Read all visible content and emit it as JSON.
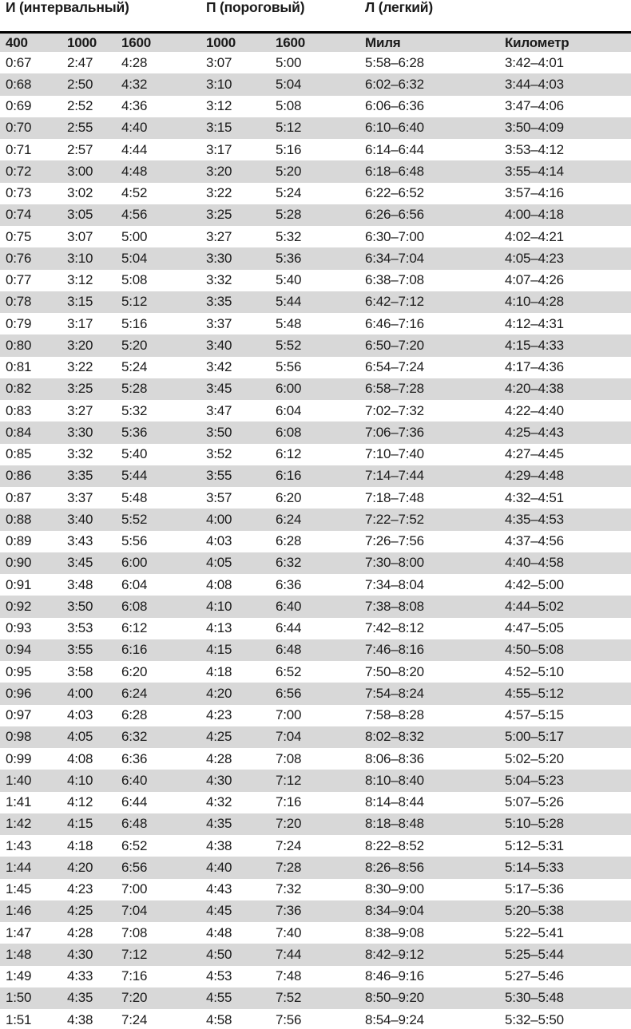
{
  "table": {
    "group_headers": [
      {
        "label": "И (интервальный)",
        "span": 3
      },
      {
        "label": "П (пороговый)",
        "span": 2
      },
      {
        "label": "Л (легкий)",
        "span": 2
      }
    ],
    "columns": [
      "400",
      "1000",
      "1600",
      "1000",
      "1600",
      "Миля",
      "Километр"
    ],
    "rows": [
      [
        "0:67",
        "2:47",
        "4:28",
        "3:07",
        "5:00",
        "5:58–6:28",
        "3:42–4:01"
      ],
      [
        "0:68",
        "2:50",
        "4:32",
        "3:10",
        "5:04",
        "6:02–6:32",
        "3:44–4:03"
      ],
      [
        "0:69",
        "2:52",
        "4:36",
        "3:12",
        "5:08",
        "6:06–6:36",
        "3:47–4:06"
      ],
      [
        "0:70",
        "2:55",
        "4:40",
        "3:15",
        "5:12",
        "6:10–6:40",
        "3:50–4:09"
      ],
      [
        "0:71",
        "2:57",
        "4:44",
        "3:17",
        "5:16",
        "6:14–6:44",
        "3:53–4:12"
      ],
      [
        "0:72",
        "3:00",
        "4:48",
        "3:20",
        "5:20",
        "6:18–6:48",
        "3:55–4:14"
      ],
      [
        "0:73",
        "3:02",
        "4:52",
        "3:22",
        "5:24",
        "6:22–6:52",
        "3:57–4:16"
      ],
      [
        "0:74",
        "3:05",
        "4:56",
        "3:25",
        "5:28",
        "6:26–6:56",
        "4:00–4:18"
      ],
      [
        "0:75",
        "3:07",
        "5:00",
        "3:27",
        "5:32",
        "6:30–7:00",
        "4:02–4:21"
      ],
      [
        "0:76",
        "3:10",
        "5:04",
        "3:30",
        "5:36",
        "6:34–7:04",
        "4:05–4:23"
      ],
      [
        "0:77",
        "3:12",
        "5:08",
        "3:32",
        "5:40",
        "6:38–7:08",
        "4:07–4:26"
      ],
      [
        "0:78",
        "3:15",
        "5:12",
        "3:35",
        "5:44",
        "6:42–7:12",
        "4:10–4:28"
      ],
      [
        "0:79",
        "3:17",
        "5:16",
        "3:37",
        "5:48",
        "6:46–7:16",
        "4:12–4:31"
      ],
      [
        "0:80",
        "3:20",
        "5:20",
        "3:40",
        "5:52",
        "6:50–7:20",
        "4:15–4:33"
      ],
      [
        "0:81",
        "3:22",
        "5:24",
        "3:42",
        "5:56",
        "6:54–7:24",
        "4:17–4:36"
      ],
      [
        "0:82",
        "3:25",
        "5:28",
        "3:45",
        "6:00",
        "6:58–7:28",
        "4:20–4:38"
      ],
      [
        "0:83",
        "3:27",
        "5:32",
        "3:47",
        "6:04",
        "7:02–7:32",
        "4:22–4:40"
      ],
      [
        "0:84",
        "3:30",
        "5:36",
        "3:50",
        "6:08",
        "7:06–7:36",
        "4:25–4:43"
      ],
      [
        "0:85",
        "3:32",
        "5:40",
        "3:52",
        "6:12",
        "7:10–7:40",
        "4:27–4:45"
      ],
      [
        "0:86",
        "3:35",
        "5:44",
        "3:55",
        "6:16",
        "7:14–7:44",
        "4:29–4:48"
      ],
      [
        "0:87",
        "3:37",
        "5:48",
        "3:57",
        "6:20",
        "7:18–7:48",
        "4:32–4:51"
      ],
      [
        "0:88",
        "3:40",
        "5:52",
        "4:00",
        "6:24",
        "7:22–7:52",
        "4:35–4:53"
      ],
      [
        "0:89",
        "3:43",
        "5:56",
        "4:03",
        "6:28",
        "7:26–7:56",
        "4:37–4:56"
      ],
      [
        "0:90",
        "3:45",
        "6:00",
        "4:05",
        "6:32",
        "7:30–8:00",
        "4:40–4:58"
      ],
      [
        "0:91",
        "3:48",
        "6:04",
        "4:08",
        "6:36",
        "7:34–8:04",
        "4:42–5:00"
      ],
      [
        "0:92",
        "3:50",
        "6:08",
        "4:10",
        "6:40",
        "7:38–8:08",
        "4:44–5:02"
      ],
      [
        "0:93",
        "3:53",
        "6:12",
        "4:13",
        "6:44",
        "7:42–8:12",
        "4:47–5:05"
      ],
      [
        "0:94",
        "3:55",
        "6:16",
        "4:15",
        "6:48",
        "7:46–8:16",
        "4:50–5:08"
      ],
      [
        "0:95",
        "3:58",
        "6:20",
        "4:18",
        "6:52",
        "7:50–8:20",
        "4:52–5:10"
      ],
      [
        "0:96",
        "4:00",
        "6:24",
        "4:20",
        "6:56",
        "7:54–8:24",
        "4:55–5:12"
      ],
      [
        "0:97",
        "4:03",
        "6:28",
        "4:23",
        "7:00",
        "7:58–8:28",
        "4:57–5:15"
      ],
      [
        "0:98",
        "4:05",
        "6:32",
        "4:25",
        "7:04",
        "8:02–8:32",
        "5:00–5:17"
      ],
      [
        "0:99",
        "4:08",
        "6:36",
        "4:28",
        "7:08",
        "8:06–8:36",
        "5:02–5:20"
      ],
      [
        "1:40",
        "4:10",
        "6:40",
        "4:30",
        "7:12",
        "8:10–8:40",
        "5:04–5:23"
      ],
      [
        "1:41",
        "4:12",
        "6:44",
        "4:32",
        "7:16",
        "8:14–8:44",
        "5:07–5:26"
      ],
      [
        "1:42",
        "4:15",
        "6:48",
        "4:35",
        "7:20",
        "8:18–8:48",
        "5:10–5:28"
      ],
      [
        "1:43",
        "4:18",
        "6:52",
        "4:38",
        "7:24",
        "8:22–8:52",
        "5:12–5:31"
      ],
      [
        "1:44",
        "4:20",
        "6:56",
        "4:40",
        "7:28",
        "8:26–8:56",
        "5:14–5:33"
      ],
      [
        "1:45",
        "4:23",
        "7:00",
        "4:43",
        "7:32",
        "8:30–9:00",
        "5:17–5:36"
      ],
      [
        "1:46",
        "4:25",
        "7:04",
        "4:45",
        "7:36",
        "8:34–9:04",
        "5:20–5:38"
      ],
      [
        "1:47",
        "4:28",
        "7:08",
        "4:48",
        "7:40",
        "8:38–9:08",
        "5:22–5:41"
      ],
      [
        "1:48",
        "4:30",
        "7:12",
        "4:50",
        "7:44",
        "8:42–9:12",
        "5:25–5:44"
      ],
      [
        "1:49",
        "4:33",
        "7:16",
        "4:53",
        "7:48",
        "8:46–9:16",
        "5:27–5:46"
      ],
      [
        "1:50",
        "4:35",
        "7:20",
        "4:55",
        "7:52",
        "8:50–9:20",
        "5:30–5:48"
      ],
      [
        "1:51",
        "4:38",
        "7:24",
        "4:58",
        "7:56",
        "8:54–9:24",
        "5:32–5:50"
      ]
    ]
  },
  "colors": {
    "row_stripe": "#d8d8d8",
    "header_stripe": "#d8d8d8",
    "top_rule": "#000000",
    "text": "#1a1a1a",
    "page_background": "#ffffff"
  }
}
